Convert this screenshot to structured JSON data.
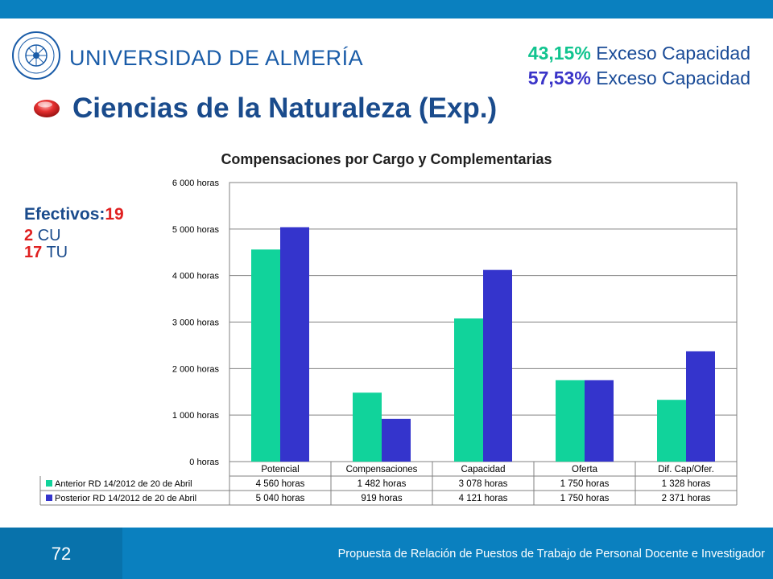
{
  "header": {
    "university": "UNIVERSIDAD DE ALMERÍA",
    "exceso": [
      {
        "percent": "43,15%",
        "label": "Exceso Capacidad",
        "color": "#11c48f"
      },
      {
        "percent": "57,53%",
        "label": "Exceso Capacidad",
        "color": "#3a34c8"
      }
    ]
  },
  "slide": {
    "title": "Ciencias de la Naturaleza (Exp.)",
    "efectivos_label": "Efectivos:",
    "efectivos_value": "19",
    "cu_count": "2",
    "cu_label": "CU",
    "tu_count": "17",
    "tu_label": "TU"
  },
  "chart_data": {
    "type": "bar",
    "title": "Compensaciones por Cargo y Complementarias",
    "categories": [
      "Potencial",
      "Compensaciones",
      "Capacidad",
      "Oferta",
      "Dif. Cap/Ofer."
    ],
    "series": [
      {
        "name": "Anterior RD 14/2012 de 20 de Abril",
        "color": "#11d39b",
        "values": [
          4560,
          1482,
          3078,
          1750,
          1328
        ],
        "labels": [
          "4 560 horas",
          "1 482 horas",
          "3 078 horas",
          "1 750 horas",
          "1 328 horas"
        ]
      },
      {
        "name": "Posterior RD 14/2012 de 20 de Abril",
        "color": "#3434cc",
        "values": [
          5040,
          919,
          4121,
          1750,
          2371
        ],
        "labels": [
          "5 040 horas",
          "919 horas",
          "4 121 horas",
          "1 750 horas",
          "2 371 horas"
        ]
      }
    ],
    "ylim": [
      0,
      6000
    ],
    "yticks": [
      0,
      1000,
      2000,
      3000,
      4000,
      5000,
      6000
    ],
    "ytick_labels": [
      "0 horas",
      "1 000 horas",
      "2 000 horas",
      "3 000 horas",
      "4 000 horas",
      "5 000 horas",
      "6 000 horas"
    ],
    "grid": true,
    "legend": "data-table"
  },
  "footer": {
    "page": "72",
    "text": "Propuesta de Relación de Puestos de Trabajo de Personal Docente e Investigador"
  }
}
